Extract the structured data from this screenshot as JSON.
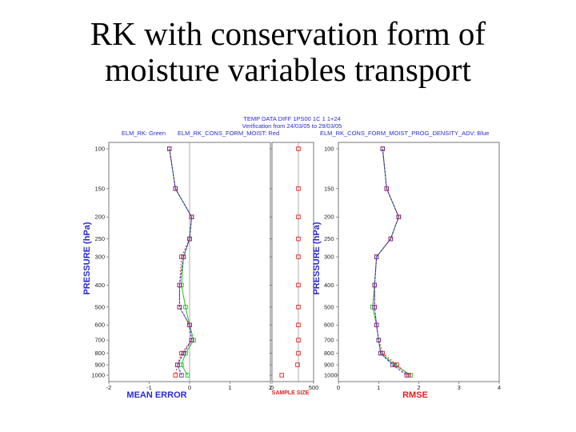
{
  "slide": {
    "title_line1": "RK with conservation form of",
    "title_line2": "moisture variables transport"
  },
  "colors": {
    "green": "#22c022",
    "red": "#e02020",
    "blue": "#2a2ad0",
    "purple": "#8a2a8a",
    "grey": "#888888"
  },
  "chart_data": {
    "type": "line",
    "header": {
      "line1": "TEMP DATA DIFF 1PS00 1C 1 1+24",
      "line2": "Verification from 24/03/05 to 29/03/05",
      "legend_left": "ELM_RK: Green",
      "legend_mid": "ELM_RK_CONS_FORM_MOIST: Red",
      "legend_right": "ELM_RK_CONS_FORM_MOIST_PROG_DENSITY_ADV: Blue"
    },
    "pressure_levels": [
      100,
      150,
      200,
      250,
      300,
      400,
      500,
      600,
      700,
      800,
      900,
      1000
    ],
    "pressure_ticks": [
      "100",
      "150",
      "200",
      "250",
      "300",
      "400",
      "500",
      "600",
      "700",
      "800",
      "900",
      "1000"
    ],
    "panels": [
      {
        "id": "mean_error",
        "xlabel": "MEAN ERROR",
        "ylabel": "PRESSURE (hPa)",
        "xlim": [
          -2,
          2
        ],
        "xticks": [
          "-2",
          "-1",
          "0",
          "1",
          "2"
        ],
        "series": [
          {
            "color": "green",
            "values": [
              -0.5,
              -0.35,
              0.05,
              0.0,
              -0.15,
              -0.2,
              -0.1,
              0.0,
              0.1,
              -0.1,
              -0.2,
              -0.05
            ]
          },
          {
            "color": "red",
            "values": [
              -0.5,
              -0.35,
              0.05,
              0.0,
              -0.2,
              -0.25,
              -0.25,
              0.0,
              0.05,
              -0.2,
              -0.3,
              -0.35
            ]
          },
          {
            "color": "blue",
            "values": [
              -0.5,
              -0.35,
              0.05,
              0.0,
              -0.15,
              -0.25,
              -0.25,
              0.0,
              0.05,
              -0.15,
              -0.3,
              -0.2
            ]
          }
        ]
      },
      {
        "id": "sample_size",
        "xlabel": "SAMPLE SIZE",
        "xlim": [
          0,
          500
        ],
        "xticks": [
          "0",
          "500"
        ],
        "series": [
          {
            "color": "red",
            "values": [
              250,
              250,
              250,
              250,
              250,
              250,
              250,
              250,
              250,
              250,
              240,
              50
            ]
          }
        ]
      },
      {
        "id": "rmse",
        "xlabel": "RMSE",
        "ylabel": "PRESSURE (hPa)",
        "xlim": [
          0,
          4
        ],
        "xticks": [
          "0",
          "1",
          "2",
          "3",
          "4"
        ],
        "series": [
          {
            "color": "green",
            "values": [
              1.1,
              1.2,
              1.5,
              1.3,
              0.95,
              0.9,
              0.85,
              0.95,
              1.0,
              1.05,
              1.4,
              1.8
            ]
          },
          {
            "color": "red",
            "values": [
              1.1,
              1.2,
              1.5,
              1.3,
              0.95,
              0.9,
              0.9,
              0.95,
              1.0,
              1.1,
              1.45,
              1.75
            ]
          },
          {
            "color": "blue",
            "values": [
              1.1,
              1.2,
              1.5,
              1.3,
              0.95,
              0.9,
              0.9,
              0.95,
              1.0,
              1.05,
              1.35,
              1.7
            ]
          }
        ]
      }
    ]
  }
}
